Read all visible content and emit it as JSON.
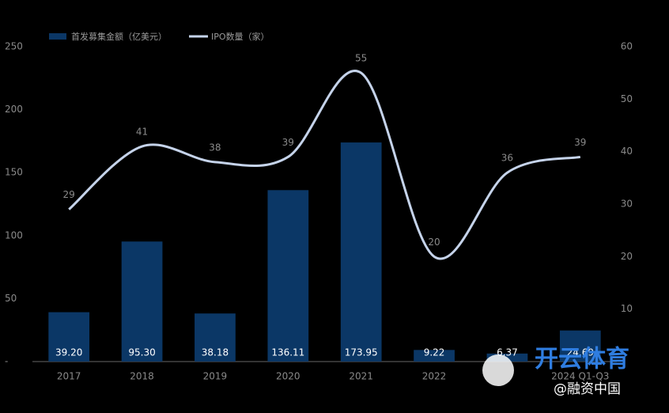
{
  "chart_data": {
    "type": "bar-line",
    "categories": [
      "2017",
      "2018",
      "2019",
      "2020",
      "2021",
      "2022",
      null,
      "2024 Q1-Q3"
    ],
    "series": [
      {
        "name": "首发募集金额（亿美元）",
        "type": "bar",
        "color": "#0b3766",
        "values": [
          39.2,
          95.3,
          38.18,
          136.11,
          173.95,
          9.22,
          6.37,
          24.69
        ],
        "value_labels": [
          "39.20",
          "95.30",
          "38.18",
          "136.11",
          "173.95",
          "9.22",
          "6.37",
          "24.69"
        ]
      },
      {
        "name": "IPO数量（家）",
        "type": "line",
        "axis": "y2",
        "color": "#c5d3ea",
        "values": [
          29,
          41,
          38,
          39,
          55,
          20,
          36,
          39
        ]
      }
    ],
    "ylim": [
      0,
      250
    ],
    "yticks": [
      {
        "value": 0,
        "label": "-"
      },
      50,
      100,
      150,
      200,
      250
    ],
    "y2lim": [
      0,
      60
    ],
    "y2ticks": [
      10,
      20,
      30,
      40,
      50,
      60
    ],
    "watermark": [
      "开云体育",
      "@融资中国"
    ]
  }
}
